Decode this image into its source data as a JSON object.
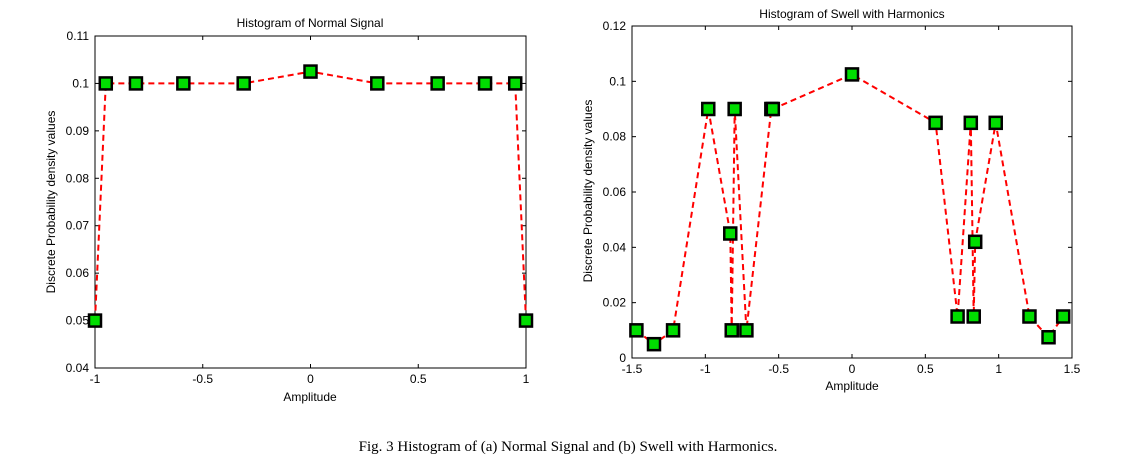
{
  "caption": "Fig. 3 Histogram of (a) Normal Signal and (b) Swell with Harmonics.",
  "chart_data": [
    {
      "type": "line",
      "title": "Histogram of Normal Signal",
      "xlabel": "Amplitude",
      "ylabel": "Discrete Probability density values",
      "xlim": [
        -1,
        1
      ],
      "ylim": [
        0.04,
        0.11
      ],
      "xticks": [
        -1,
        -0.5,
        0,
        0.5,
        1
      ],
      "xtick_labels": [
        "-1",
        "-0.5",
        "0",
        "0.5",
        "1"
      ],
      "yticks": [
        0.04,
        0.05,
        0.06,
        0.07,
        0.08,
        0.09,
        0.1,
        0.11
      ],
      "ytick_labels": [
        "0.04",
        "0.05",
        "0.06",
        "0.07",
        "0.08",
        "0.09",
        "0.1",
        "0.11"
      ],
      "line_color": "#ff0000",
      "marker_color": "#00dd00",
      "series": [
        {
          "name": "Normal Signal",
          "x": [
            -1.0,
            -0.95,
            -0.81,
            -0.59,
            -0.31,
            0.0,
            0.31,
            0.59,
            0.81,
            0.95,
            1.0
          ],
          "y": [
            0.05,
            0.1,
            0.1,
            0.1,
            0.1,
            0.1025,
            0.1,
            0.1,
            0.1,
            0.1,
            0.05
          ]
        }
      ]
    },
    {
      "type": "line",
      "title": "Histogram of Swell with Harmonics",
      "xlabel": "Amplitude",
      "ylabel": "Discrete Probability density values",
      "xlim": [
        -1.5,
        1.5
      ],
      "ylim": [
        0,
        0.12
      ],
      "xticks": [
        -1.5,
        -1,
        -0.5,
        0,
        0.5,
        1,
        1.5
      ],
      "xtick_labels": [
        "-1.5",
        "-1",
        "-0.5",
        "0",
        "0.5",
        "1",
        "1.5"
      ],
      "yticks": [
        0,
        0.02,
        0.04,
        0.06,
        0.08,
        0.1,
        0.12
      ],
      "ytick_labels": [
        "0",
        "0.02",
        "0.04",
        "0.06",
        "0.08",
        "0.1",
        "0.12"
      ],
      "line_color": "#ff0000",
      "marker_color": "#00dd00",
      "series": [
        {
          "name": "Swell with Harmonics",
          "x": [
            -1.47,
            -1.35,
            -1.22,
            -0.98,
            -0.83,
            -0.82,
            -0.8,
            -0.72,
            -0.55,
            -0.54,
            0.0,
            0.57,
            0.72,
            0.81,
            0.83,
            0.84,
            0.98,
            1.21,
            1.34,
            1.44
          ],
          "y": [
            0.01,
            0.005,
            0.01,
            0.09,
            0.045,
            0.01,
            0.09,
            0.01,
            0.09,
            0.09,
            0.1025,
            0.085,
            0.015,
            0.085,
            0.015,
            0.042,
            0.085,
            0.015,
            0.0075,
            0.015
          ]
        }
      ]
    }
  ]
}
